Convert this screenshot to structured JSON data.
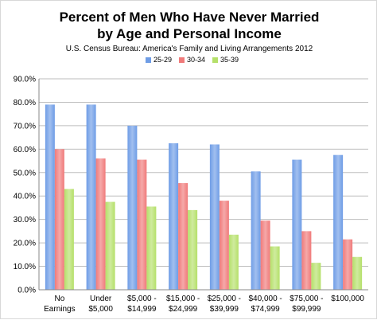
{
  "chart_data": {
    "type": "bar",
    "title_line1": "Percent of Men Who Have Never Married",
    "title_line2": "by Age and Personal Income",
    "subtitle": "U.S. Census Bureau: America's Family and Living Arrangements 2012",
    "xlabel": "",
    "ylabel": "",
    "ylim": [
      0,
      90
    ],
    "yticks": [
      "0.0%",
      "10.0%",
      "20.0%",
      "30.0%",
      "40.0%",
      "50.0%",
      "60.0%",
      "70.0%",
      "80.0%",
      "90.0%"
    ],
    "grid": true,
    "legend_position": "top",
    "categories": [
      [
        "No",
        "Earnings"
      ],
      [
        "Under",
        "$5,000"
      ],
      [
        "$5,000 -",
        "$14,999"
      ],
      [
        "$15,000 -",
        "$24,999"
      ],
      [
        "$25,000 -",
        "$39,999"
      ],
      [
        "$40,000 -",
        "$74,999"
      ],
      [
        "$75,000 -",
        "$99,999"
      ],
      [
        "$100,000"
      ]
    ],
    "series": [
      {
        "name": "25-29",
        "color": "#6f9de6",
        "values": [
          79,
          79,
          70,
          62.5,
          62,
          50.5,
          55.5,
          57.5
        ]
      },
      {
        "name": "30-34",
        "color": "#f07a7a",
        "values": [
          60,
          56,
          55.5,
          45.5,
          38,
          29.5,
          25,
          21.5
        ]
      },
      {
        "name": "35-39",
        "color": "#b5e06a",
        "values": [
          43,
          37.5,
          35.5,
          34,
          23.5,
          18.5,
          11.5,
          14
        ]
      }
    ]
  }
}
